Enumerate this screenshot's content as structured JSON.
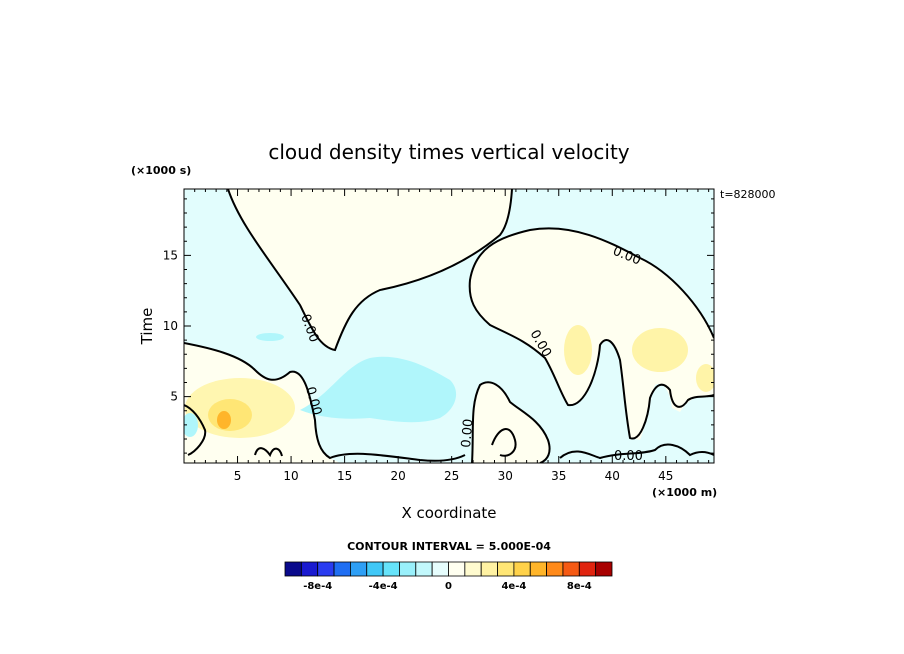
{
  "chart_data": {
    "type": "heatmap",
    "title": "cloud density times vertical velocity",
    "xlabel": "X coordinate",
    "ylabel": "Time",
    "x_units": "(×1000 m)",
    "y_units": "(×1000 s)",
    "time_stamp": "t=828000",
    "xlim": [
      0,
      49.5
    ],
    "ylim": [
      0.3,
      19.7
    ],
    "x_ticks": [
      "5",
      "10",
      "15",
      "20",
      "25",
      "30",
      "35",
      "40",
      "45"
    ],
    "y_ticks": [
      "5",
      "10",
      "15"
    ],
    "contour_label": "0.00",
    "contour_interval": "CONTOUR INTERVAL = 5.000E-04",
    "colorbar": {
      "levels": [
        -0.001,
        -0.0009,
        -0.0008,
        -0.0007,
        -0.0006,
        -0.0005,
        -0.0004,
        -0.0003,
        -0.0002,
        -0.0001,
        0,
        0.0001,
        0.0002,
        0.0003,
        0.0004,
        0.0005,
        0.0006,
        0.0007,
        0.0008,
        0.0009,
        0.001
      ],
      "tick_labels": [
        "-8e-4",
        "-4e-4",
        "0",
        "4e-4",
        "8e-4"
      ],
      "colors": [
        "#0a0a8c",
        "#1a1ad0",
        "#2a3cf0",
        "#1f6ef2",
        "#2e9ff5",
        "#40c8f7",
        "#66e3fa",
        "#99f0fb",
        "#c2f8fc",
        "#e6fdfd",
        "#fffff0",
        "#fffbcf",
        "#fff2a3",
        "#ffe675",
        "#ffd24a",
        "#ffb52a",
        "#ff8a1a",
        "#f55a14",
        "#e0240f",
        "#a80000"
      ]
    }
  }
}
